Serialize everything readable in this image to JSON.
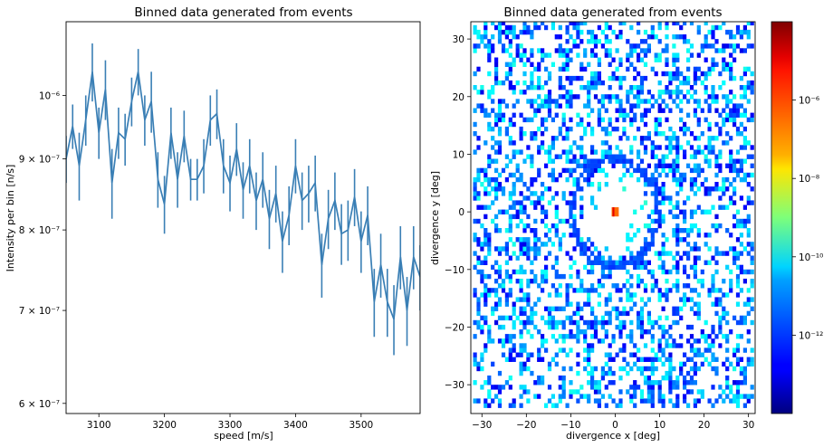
{
  "chart_data": [
    {
      "type": "line",
      "title": "Binned data generated from events",
      "xlabel": "speed [m/s]",
      "ylabel": "Intensity per bin [n/s]",
      "yscale": "log",
      "xlim": [
        3050,
        3590
      ],
      "ylim": [
        5.9e-07,
        1.13e-06
      ],
      "grid": false,
      "color": "#3a7fb5",
      "x_ticks": [
        3100,
        3200,
        3300,
        3400,
        3500
      ],
      "x_tick_labels": [
        "3100",
        "3200",
        "3300",
        "3400",
        "3500"
      ],
      "y_ticks": [
        6e-07,
        7e-07,
        8e-07,
        9e-07,
        1e-06
      ],
      "y_tick_labels": [
        "6 × 10⁻⁷",
        "7 × 10⁻⁷",
        "8 × 10⁻⁷",
        "9 × 10⁻⁷",
        "10⁻⁶"
      ],
      "series": [
        {
          "x": [
            3050,
            3060,
            3070,
            3080,
            3090,
            3100,
            3110,
            3120,
            3130,
            3140,
            3150,
            3160,
            3170,
            3180,
            3190,
            3200,
            3210,
            3220,
            3230,
            3240,
            3250,
            3260,
            3270,
            3280,
            3290,
            3300,
            3310,
            3320,
            3330,
            3340,
            3350,
            3360,
            3370,
            3380,
            3390,
            3400,
            3410,
            3420,
            3430,
            3440,
            3450,
            3460,
            3470,
            3480,
            3490,
            3500,
            3510,
            3520,
            3530,
            3540,
            3550,
            3560,
            3570,
            3580,
            3590
          ],
          "y": [
            9e-07,
            9.5e-07,
            8.9e-07,
            9.6e-07,
            1.04e-06,
            9.4e-07,
            1.01e-06,
            8.65e-07,
            9.4e-07,
            9.3e-07,
            9.9e-07,
            1.04e-06,
            9.6e-07,
            9.9e-07,
            8.7e-07,
            8.35e-07,
            9.4e-07,
            8.7e-07,
            9.35e-07,
            8.7e-07,
            8.7e-07,
            8.9e-07,
            9.6e-07,
            9.7e-07,
            8.9e-07,
            8.65e-07,
            9.15e-07,
            8.55e-07,
            8.9e-07,
            8.4e-07,
            8.7e-07,
            8.15e-07,
            8.5e-07,
            7.85e-07,
            8.2e-07,
            8.9e-07,
            8.4e-07,
            8.5e-07,
            8.65e-07,
            7.55e-07,
            8.15e-07,
            8.4e-07,
            7.95e-07,
            8e-07,
            8.45e-07,
            7.85e-07,
            8.2e-07,
            7.1e-07,
            7.55e-07,
            7.1e-07,
            6.9e-07,
            7.65e-07,
            7e-07,
            7.65e-07,
            7.4e-07
          ],
          "yerr": [
            3.5e-08,
            3.5e-08,
            5e-08,
            4e-08,
            5e-08,
            4e-08,
            5e-08,
            5e-08,
            4e-08,
            4e-08,
            4e-08,
            4e-08,
            4e-08,
            5e-08,
            4e-08,
            4e-08,
            4e-08,
            4e-08,
            4e-08,
            3e-08,
            3e-08,
            4e-08,
            4e-08,
            4e-08,
            4e-08,
            4e-08,
            4e-08,
            4e-08,
            4e-08,
            4e-08,
            4e-08,
            4e-08,
            4e-08,
            4e-08,
            4e-08,
            4e-08,
            4e-08,
            4e-08,
            4e-08,
            4e-08,
            4e-08,
            4e-08,
            4e-08,
            4e-08,
            4e-08,
            4e-08,
            4e-08,
            4e-08,
            4e-08,
            4e-08,
            4e-08,
            4e-08,
            4e-08,
            4e-08,
            4e-08
          ]
        }
      ]
    },
    {
      "type": "heatmap",
      "title": "Binned data generated from events",
      "xlabel": "divergence x [deg]",
      "ylabel": "divergence y [deg]",
      "xlim": [
        -32.5,
        31.5
      ],
      "ylim": [
        -35,
        33
      ],
      "grid": false,
      "x_ticks": [
        -30,
        -20,
        -10,
        0,
        10,
        20,
        30
      ],
      "x_tick_labels": [
        "−30",
        "−20",
        "−10",
        "0",
        "10",
        "20",
        "30"
      ],
      "y_ticks": [
        -30,
        -20,
        -10,
        0,
        10,
        20,
        30
      ],
      "y_tick_labels": [
        "−30",
        "−20",
        "−10",
        "0",
        "10",
        "20",
        "30"
      ],
      "colorscale": "jet",
      "color_scale_type": "log",
      "colorbar_range": [
        1e-14,
        0.0001
      ],
      "colorbar_ticks": [
        1e-12,
        1e-10,
        1e-08,
        1e-06
      ],
      "colorbar_tick_labels": [
        "10⁻¹²",
        "10⁻¹⁰",
        "10⁻⁸",
        "10⁻⁶"
      ],
      "features": {
        "background_scatter": {
          "x_range": [
            -32,
            31
          ],
          "y_range": [
            -34,
            33
          ],
          "cell_size_deg": 0.8,
          "fill_fraction": 0.36,
          "intensity_range": [
            1e-13,
            1e-10
          ]
        },
        "ring": {
          "center": [
            0,
            0
          ],
          "radius_deg": 9.5,
          "thickness_deg": 1.5,
          "intensity": 1e-12
        },
        "center_peak": {
          "x": [
            -0.8,
            0.8
          ],
          "y": [
            -0.8,
            0.8
          ],
          "intensity": 5e-07
        }
      }
    }
  ]
}
